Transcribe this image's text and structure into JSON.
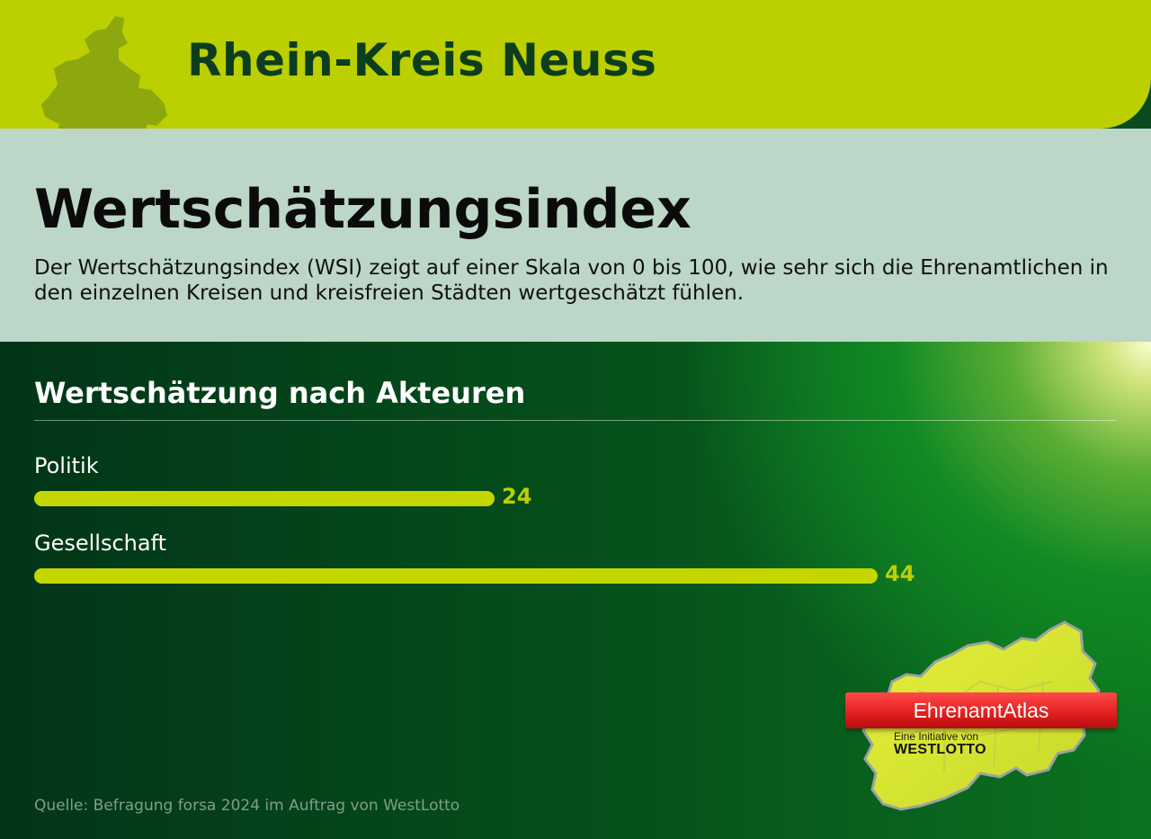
{
  "header": {
    "title": "Rhein-Kreis Neuss"
  },
  "intro": {
    "title": "Wertschätzungsindex",
    "text": "Der Wertschätzungsindex (WSI) zeigt auf einer Skala von 0 bis 100, wie sehr sich die Ehrenamtlichen in den einzelnen Kreisen und kreisfreien Städten wertgeschätzt fühlen."
  },
  "colors": {
    "header": "#bccf00",
    "intro": "#bcd6c7",
    "panel": "#0a4a1c",
    "bar": "#c4d600",
    "value": "#bccf00"
  },
  "chart_data": {
    "type": "bar",
    "orientation": "horizontal",
    "title": "Wertschätzung nach Akteuren",
    "categories": [
      "Politik",
      "Gesellschaft"
    ],
    "values": [
      24,
      44
    ],
    "value_labels": [
      "24",
      "44"
    ],
    "xlim": [
      0,
      100
    ],
    "grid": false
  },
  "source": "Quelle: Befragung forsa 2024 im Auftrag von WestLotto",
  "logo": {
    "name": "EhrenamtAtlas",
    "subtitle": "Eine Initiative von",
    "brand": "WESTLOTTO"
  }
}
